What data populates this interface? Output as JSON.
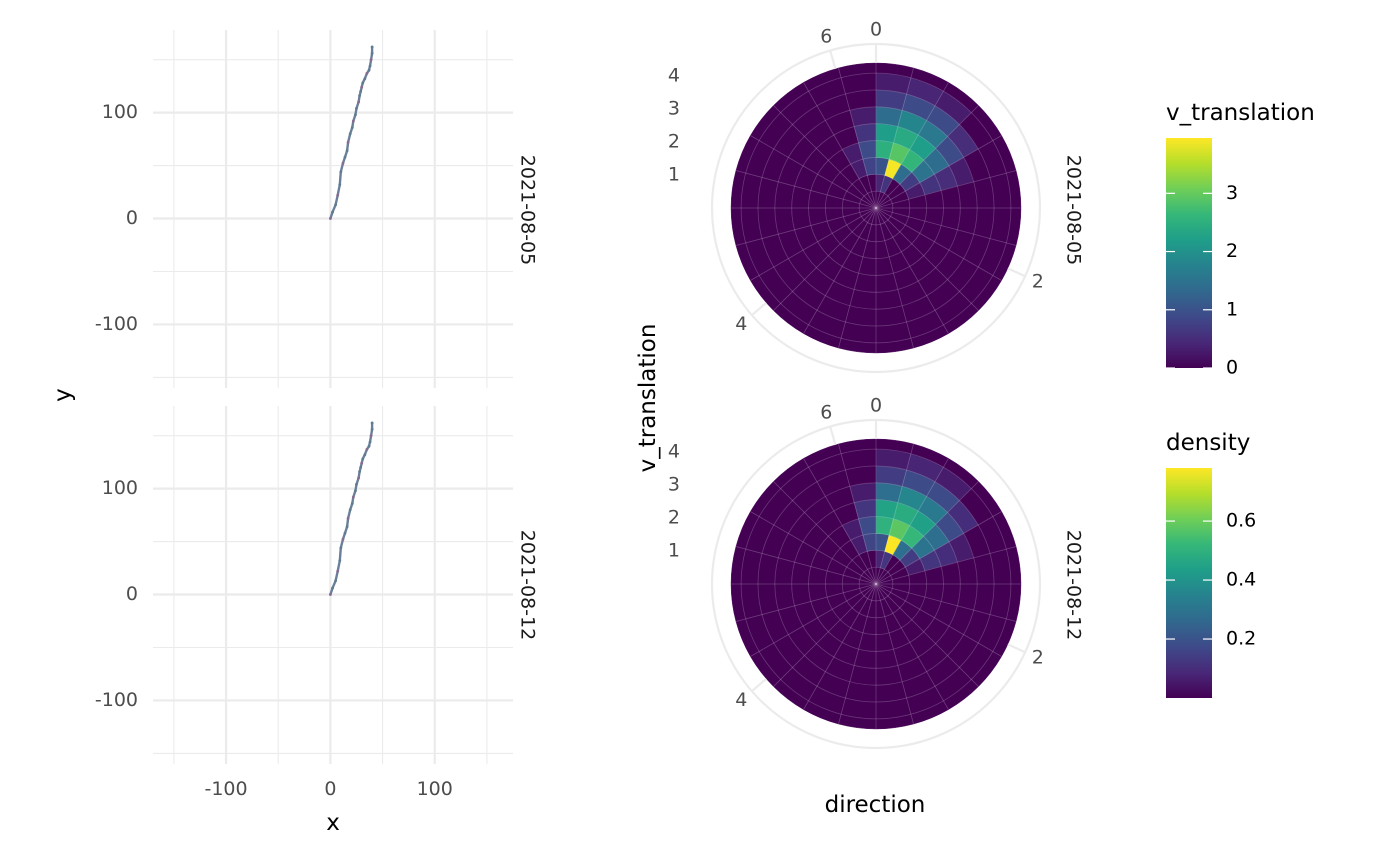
{
  "chart_data": [
    {
      "type": "line",
      "facets": [
        "2021-08-05",
        "2021-08-12"
      ],
      "xlabel": "x",
      "ylabel": "y",
      "xlim": [
        -170,
        175
      ],
      "ylim": [
        -160,
        178
      ],
      "x_ticks": [
        -100,
        0,
        100
      ],
      "y_ticks": [
        -100,
        0,
        100
      ],
      "x_tick_labels": [
        "-100",
        "0",
        "100"
      ],
      "y_tick_labels": [
        "-100",
        "0",
        "100"
      ],
      "grid": true,
      "series": [
        {
          "facet": "2021-08-05",
          "color": "#6b7f9a",
          "x": [
            0,
            2,
            5,
            7,
            9,
            10,
            12,
            14,
            16,
            17,
            19,
            21,
            22,
            24,
            25,
            27,
            28,
            29,
            30,
            31,
            33,
            35,
            37,
            38,
            39,
            40,
            40
          ],
          "y": [
            0,
            6,
            13,
            22,
            32,
            44,
            52,
            58,
            64,
            72,
            80,
            86,
            92,
            98,
            104,
            110,
            116,
            120,
            124,
            128,
            132,
            137,
            140,
            144,
            150,
            156,
            162
          ]
        },
        {
          "facet": "2021-08-12",
          "color": "#6b7f9a",
          "x": [
            0,
            2,
            5,
            7,
            9,
            10,
            12,
            14,
            16,
            17,
            19,
            21,
            22,
            24,
            25,
            27,
            28,
            29,
            30,
            31,
            33,
            35,
            37,
            38,
            39,
            40,
            40
          ],
          "y": [
            0,
            6,
            13,
            22,
            32,
            44,
            52,
            58,
            64,
            72,
            80,
            86,
            92,
            98,
            104,
            110,
            116,
            120,
            124,
            128,
            132,
            137,
            140,
            144,
            150,
            156,
            162
          ]
        }
      ]
    },
    {
      "type": "heatmap",
      "coord": "polar",
      "facets": [
        "2021-08-05",
        "2021-08-12"
      ],
      "xlabel": "direction",
      "ylabel": "v_translation",
      "theta_ticks": [
        0,
        2,
        4,
        6
      ],
      "theta_range": [
        0,
        6.2832
      ],
      "r_ticks": [
        1,
        2,
        3,
        4
      ],
      "r_range": [
        0,
        4.3
      ],
      "theta_bins": 24,
      "r_bins": [
        0,
        0.5,
        1,
        1.5,
        2,
        2.5,
        3,
        3.5,
        4,
        4.3
      ],
      "grid": true,
      "panels": [
        {
          "facet": "2021-08-05",
          "fill_variable": "v_translation",
          "cells": [
            {
              "theta_bin": 0,
              "r_bin": 2,
              "value": 1.0
            },
            {
              "theta_bin": 0,
              "r_bin": 3,
              "value": 2.5
            },
            {
              "theta_bin": 0,
              "r_bin": 4,
              "value": 2.2
            },
            {
              "theta_bin": 0,
              "r_bin": 5,
              "value": 1.4
            },
            {
              "theta_bin": 0,
              "r_bin": 6,
              "value": 0.7
            },
            {
              "theta_bin": 0,
              "r_bin": 7,
              "value": 0.3
            },
            {
              "theta_bin": 1,
              "r_bin": 2,
              "value": 3.9
            },
            {
              "theta_bin": 1,
              "r_bin": 3,
              "value": 2.9
            },
            {
              "theta_bin": 1,
              "r_bin": 4,
              "value": 2.4
            },
            {
              "theta_bin": 1,
              "r_bin": 5,
              "value": 1.8
            },
            {
              "theta_bin": 1,
              "r_bin": 6,
              "value": 0.9
            },
            {
              "theta_bin": 1,
              "r_bin": 7,
              "value": 0.4
            },
            {
              "theta_bin": 2,
              "r_bin": 2,
              "value": 1.4
            },
            {
              "theta_bin": 2,
              "r_bin": 3,
              "value": 2.6
            },
            {
              "theta_bin": 2,
              "r_bin": 4,
              "value": 2.2
            },
            {
              "theta_bin": 2,
              "r_bin": 5,
              "value": 1.6
            },
            {
              "theta_bin": 2,
              "r_bin": 6,
              "value": 0.9
            },
            {
              "theta_bin": 2,
              "r_bin": 7,
              "value": 0.3
            },
            {
              "theta_bin": 3,
              "r_bin": 2,
              "value": 0.7
            },
            {
              "theta_bin": 3,
              "r_bin": 3,
              "value": 1.5
            },
            {
              "theta_bin": 3,
              "r_bin": 4,
              "value": 1.4
            },
            {
              "theta_bin": 3,
              "r_bin": 5,
              "value": 0.9
            },
            {
              "theta_bin": 3,
              "r_bin": 6,
              "value": 0.5
            },
            {
              "theta_bin": 4,
              "r_bin": 2,
              "value": 0.3
            },
            {
              "theta_bin": 4,
              "r_bin": 3,
              "value": 0.6
            },
            {
              "theta_bin": 4,
              "r_bin": 4,
              "value": 0.5
            },
            {
              "theta_bin": 4,
              "r_bin": 5,
              "value": 0.3
            },
            {
              "theta_bin": 23,
              "r_bin": 2,
              "value": 0.8
            },
            {
              "theta_bin": 23,
              "r_bin": 3,
              "value": 0.9
            },
            {
              "theta_bin": 23,
              "r_bin": 4,
              "value": 0.6
            },
            {
              "theta_bin": 23,
              "r_bin": 5,
              "value": 0.3
            },
            {
              "theta_bin": 22,
              "r_bin": 2,
              "value": 0.3
            },
            {
              "theta_bin": 22,
              "r_bin": 3,
              "value": 0.3
            },
            {
              "theta_bin": 1,
              "r_bin": 1,
              "value": 0.6
            },
            {
              "theta_bin": 0,
              "r_bin": 1,
              "value": 0.4
            }
          ]
        },
        {
          "facet": "2021-08-12",
          "fill_variable": "density",
          "cells": [
            {
              "theta_bin": 0,
              "r_bin": 2,
              "value": 0.2
            },
            {
              "theta_bin": 0,
              "r_bin": 3,
              "value": 0.5
            },
            {
              "theta_bin": 0,
              "r_bin": 4,
              "value": 0.45
            },
            {
              "theta_bin": 0,
              "r_bin": 5,
              "value": 0.28
            },
            {
              "theta_bin": 0,
              "r_bin": 6,
              "value": 0.14
            },
            {
              "theta_bin": 0,
              "r_bin": 7,
              "value": 0.06
            },
            {
              "theta_bin": 1,
              "r_bin": 2,
              "value": 0.78
            },
            {
              "theta_bin": 1,
              "r_bin": 3,
              "value": 0.58
            },
            {
              "theta_bin": 1,
              "r_bin": 4,
              "value": 0.48
            },
            {
              "theta_bin": 1,
              "r_bin": 5,
              "value": 0.36
            },
            {
              "theta_bin": 1,
              "r_bin": 6,
              "value": 0.18
            },
            {
              "theta_bin": 1,
              "r_bin": 7,
              "value": 0.08
            },
            {
              "theta_bin": 2,
              "r_bin": 2,
              "value": 0.28
            },
            {
              "theta_bin": 2,
              "r_bin": 3,
              "value": 0.52
            },
            {
              "theta_bin": 2,
              "r_bin": 4,
              "value": 0.44
            },
            {
              "theta_bin": 2,
              "r_bin": 5,
              "value": 0.32
            },
            {
              "theta_bin": 2,
              "r_bin": 6,
              "value": 0.18
            },
            {
              "theta_bin": 2,
              "r_bin": 7,
              "value": 0.06
            },
            {
              "theta_bin": 3,
              "r_bin": 2,
              "value": 0.14
            },
            {
              "theta_bin": 3,
              "r_bin": 3,
              "value": 0.3
            },
            {
              "theta_bin": 3,
              "r_bin": 4,
              "value": 0.28
            },
            {
              "theta_bin": 3,
              "r_bin": 5,
              "value": 0.18
            },
            {
              "theta_bin": 3,
              "r_bin": 6,
              "value": 0.1
            },
            {
              "theta_bin": 4,
              "r_bin": 2,
              "value": 0.06
            },
            {
              "theta_bin": 4,
              "r_bin": 3,
              "value": 0.12
            },
            {
              "theta_bin": 4,
              "r_bin": 4,
              "value": 0.1
            },
            {
              "theta_bin": 4,
              "r_bin": 5,
              "value": 0.06
            },
            {
              "theta_bin": 23,
              "r_bin": 2,
              "value": 0.16
            },
            {
              "theta_bin": 23,
              "r_bin": 3,
              "value": 0.18
            },
            {
              "theta_bin": 23,
              "r_bin": 4,
              "value": 0.12
            },
            {
              "theta_bin": 23,
              "r_bin": 5,
              "value": 0.06
            },
            {
              "theta_bin": 22,
              "r_bin": 2,
              "value": 0.06
            },
            {
              "theta_bin": 22,
              "r_bin": 3,
              "value": 0.06
            },
            {
              "theta_bin": 1,
              "r_bin": 1,
              "value": 0.12
            },
            {
              "theta_bin": 0,
              "r_bin": 1,
              "value": 0.08
            }
          ]
        }
      ],
      "legends": [
        {
          "title": "v_translation",
          "range": [
            0,
            3.95
          ],
          "ticks": [
            0,
            1,
            2,
            3
          ],
          "tick_labels": [
            "0",
            "1",
            "2",
            "3"
          ]
        },
        {
          "title": "density",
          "range": [
            0.0,
            0.78
          ],
          "ticks": [
            0.2,
            0.4,
            0.6
          ],
          "tick_labels": [
            "0.2",
            "0.4",
            "0.6"
          ]
        }
      ],
      "colormap": "viridis",
      "colormap_stops": [
        "#440154",
        "#482878",
        "#3e4a89",
        "#31688e",
        "#26828e",
        "#1f9e89",
        "#35b779",
        "#6ece58",
        "#b5de2b",
        "#fde725"
      ]
    }
  ]
}
